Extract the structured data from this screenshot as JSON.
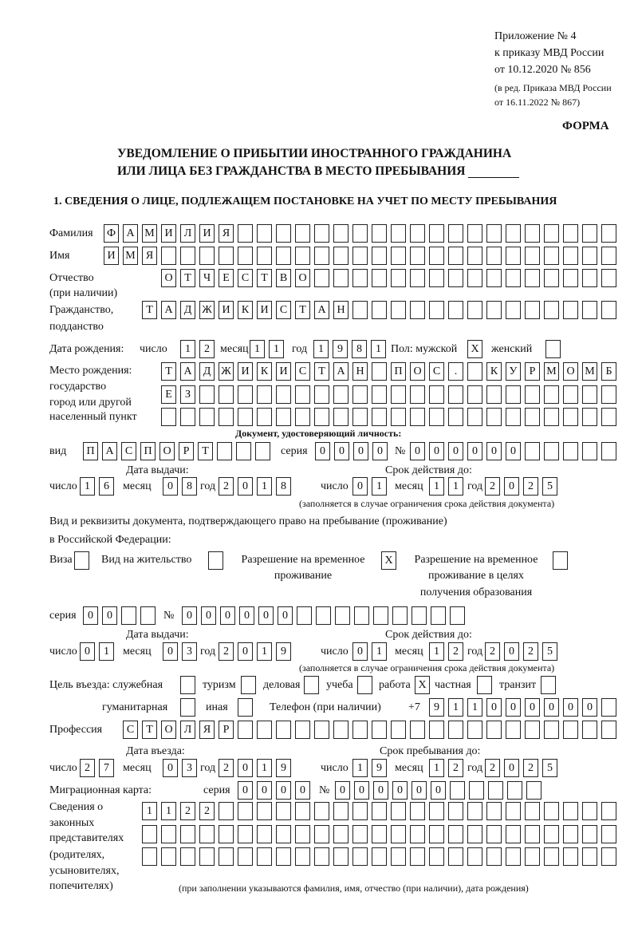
{
  "header": {
    "annex": "Приложение № 4",
    "order": "к приказу МВД России",
    "order_date": "от 10.12.2020 № 856",
    "edition": "(в ред. Приказа МВД России",
    "edition_date": "от 16.11.2022 № 867)",
    "form_label": "ФОРМА",
    "title_line1": "УВЕДОМЛЕНИЕ О ПРИБЫТИИ ИНОСТРАННОГО ГРАЖДАНИНА",
    "title_line2": "ИЛИ ЛИЦА БЕЗ ГРАЖДАНСТВА В МЕСТО ПРЕБЫВАНИЯ",
    "section1": "1. СВЕДЕНИЯ О ЛИЦЕ, ПОДЛЕЖАЩЕМ ПОСТАНОВКЕ НА УЧЕТ ПО МЕСТУ ПРЕБЫВАНИЯ"
  },
  "labels": {
    "surname": "Фамилия",
    "name": "Имя",
    "patronymic": "Отчество",
    "patronymic_note": "(при наличии)",
    "citizenship": "Гражданство,",
    "citizenship2": "подданство",
    "birth_date": "Дата рождения:",
    "day": "число",
    "month": "месяц",
    "year": "год",
    "sex": "Пол: мужской",
    "female": "женский",
    "birthplace1": "Место рождения:",
    "birthplace2": "государство",
    "birthplace3": "город или другой",
    "birthplace4": "населенный пункт",
    "id_doc": "Документ, удостоверяющий личность:",
    "kind": "вид",
    "series": "серия",
    "number": "№",
    "issue_date": "Дата выдачи:",
    "valid_until": "Срок действия до:",
    "validity_note": "(заполняется в случае ограничения срока действия документа)",
    "stay_doc1": "Вид и реквизиты документа, подтверждающего право на пребывание (проживание)",
    "stay_doc2": "в Российской Федерации:",
    "visa": "Виза",
    "residence": "Вид на жительство",
    "trp1": "Разрешение на временное",
    "trp2": "проживание",
    "trp_edu1": "Разрешение на временное",
    "trp_edu2": "проживание в целях",
    "trp_edu3": "получения образования",
    "purpose": "Цель въезда: служебная",
    "tourism": "туризм",
    "business": "деловая",
    "study": "учеба",
    "work": "работа",
    "private": "частная",
    "transit": "транзит",
    "humanitarian": "гуманитарная",
    "other": "иная",
    "phone": "Телефон (при наличии)",
    "phone_prefix": "+7",
    "profession": "Профессия",
    "entry_date": "Дата въезда:",
    "stay_until": "Срок пребывания до:",
    "migration_card": "Миграционная карта:",
    "reps1": "Сведения о",
    "reps2": "законных",
    "reps3": "представителях",
    "reps4": "(родителях,",
    "reps5": "усыновителях,",
    "reps6": "попечителях)",
    "reps_note": "(при заполнении указываются фамилия, имя, отчество (при наличии), дата рождения)"
  },
  "person": {
    "surname": "ФАМИЛИЯ",
    "name": "ИМЯ",
    "patronymic": "ОТЧЕСТВО",
    "citizenship": "ТАДЖИКИСТАН",
    "birth_day": "12",
    "birth_month": "11",
    "birth_year": "1981",
    "male": "X",
    "female": "",
    "birthplace": [
      "ТАДЖИКИСТАН ПОС. КУРМОМБ",
      "ЕЗ",
      ""
    ]
  },
  "id_document": {
    "kind": "ПАСПОРТ",
    "series": "0000",
    "number": "000000",
    "issue_day": "16",
    "issue_month": "08",
    "issue_year": "2018",
    "valid_day": "01",
    "valid_month": "11",
    "valid_year": "2025"
  },
  "stay_document": {
    "visa": "",
    "residence": "",
    "trp": "X",
    "trp_edu": "",
    "series": "00",
    "number": "000000",
    "issue_day": "01",
    "issue_month": "03",
    "issue_year": "2019",
    "valid_day": "01",
    "valid_month": "12",
    "valid_year": "2025"
  },
  "purpose": {
    "official": "",
    "tourism": "",
    "business": "",
    "study": "",
    "work": "X",
    "private": "",
    "transit": "",
    "humanitarian": "",
    "other": ""
  },
  "phone": "911000000",
  "profession": "СТОЛЯР",
  "entry": {
    "entry_day": "27",
    "entry_month": "03",
    "entry_year": "2019",
    "until_day": "19",
    "until_month": "12",
    "until_year": "2025"
  },
  "migration_card": {
    "series": "0000",
    "number": "000000"
  },
  "representatives": [
    "1122",
    "",
    ""
  ]
}
